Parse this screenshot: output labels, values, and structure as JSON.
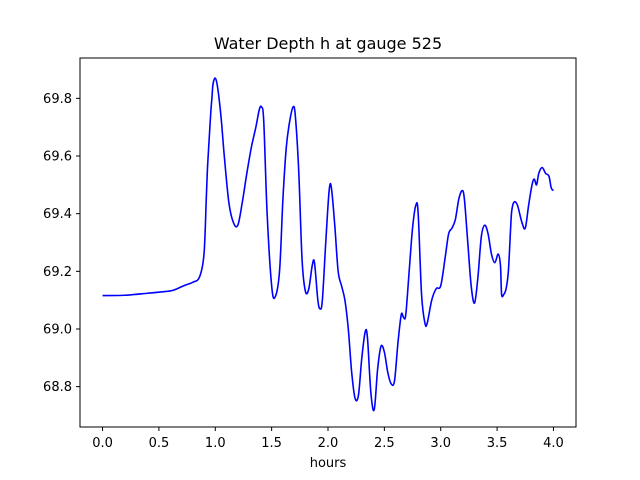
{
  "chart_data": {
    "type": "line",
    "title": "Water Depth h at gauge 525",
    "xlabel": "hours",
    "ylabel": "",
    "xlim": [
      -0.2,
      4.2
    ],
    "ylim": [
      68.66,
      69.94
    ],
    "xticks": [
      0.0,
      0.5,
      1.0,
      1.5,
      2.0,
      2.5,
      3.0,
      3.5,
      4.0
    ],
    "xtick_labels": [
      "0.0",
      "0.5",
      "1.0",
      "1.5",
      "2.0",
      "2.5",
      "3.0",
      "3.5",
      "4.0"
    ],
    "yticks": [
      68.8,
      69.0,
      69.2,
      69.4,
      69.6,
      69.8
    ],
    "ytick_labels": [
      "68.8",
      "69.0",
      "69.2",
      "69.4",
      "69.6",
      "69.8"
    ],
    "grid": false,
    "series": [
      {
        "color": "#0000ff",
        "x": [
          0.0,
          0.2,
          0.4,
          0.6,
          0.65,
          0.72,
          0.8,
          0.86,
          0.9,
          0.92,
          0.93,
          0.94,
          0.96,
          0.97,
          0.98,
          1.0,
          1.02,
          1.05,
          1.08,
          1.12,
          1.16,
          1.2,
          1.24,
          1.28,
          1.32,
          1.36,
          1.39,
          1.41,
          1.43,
          1.46,
          1.5,
          1.53,
          1.57,
          1.6,
          1.63,
          1.66,
          1.69,
          1.71,
          1.74,
          1.77,
          1.8,
          1.83,
          1.86,
          1.88,
          1.91,
          1.93,
          1.95,
          1.98,
          2.01,
          2.03,
          2.06,
          2.09,
          2.12,
          2.15,
          2.18,
          2.21,
          2.24,
          2.27,
          2.3,
          2.33,
          2.35,
          2.38,
          2.41,
          2.44,
          2.47,
          2.5,
          2.53,
          2.56,
          2.59,
          2.62,
          2.65,
          2.67,
          2.69,
          2.72,
          2.75,
          2.78,
          2.8,
          2.83,
          2.86,
          2.88,
          2.92,
          2.96,
          3.0,
          3.04,
          3.07,
          3.1,
          3.13,
          3.16,
          3.19,
          3.21,
          3.24,
          3.27,
          3.3,
          3.33,
          3.36,
          3.39,
          3.42,
          3.45,
          3.48,
          3.51,
          3.53,
          3.54,
          3.56,
          3.58,
          3.6,
          3.62,
          3.63,
          3.65,
          3.68,
          3.72,
          3.75,
          3.78,
          3.81,
          3.83,
          3.85,
          3.87,
          3.9,
          3.93,
          3.96,
          3.98,
          4.0
        ],
        "y": [
          69.116,
          69.117,
          69.124,
          69.132,
          69.138,
          69.15,
          69.162,
          69.18,
          69.26,
          69.45,
          69.55,
          69.62,
          69.75,
          69.8,
          69.85,
          69.87,
          69.84,
          69.74,
          69.6,
          69.44,
          69.37,
          69.36,
          69.44,
          69.54,
          69.63,
          69.7,
          69.76,
          69.77,
          69.72,
          69.4,
          69.15,
          69.11,
          69.2,
          69.45,
          69.63,
          69.72,
          69.77,
          69.74,
          69.55,
          69.24,
          69.13,
          69.14,
          69.22,
          69.23,
          69.1,
          69.07,
          69.1,
          69.3,
          69.48,
          69.49,
          69.36,
          69.2,
          69.15,
          69.1,
          69.0,
          68.85,
          68.76,
          68.77,
          68.9,
          68.99,
          68.97,
          68.78,
          68.72,
          68.86,
          68.94,
          68.92,
          68.85,
          68.81,
          68.82,
          68.95,
          69.05,
          69.04,
          69.05,
          69.2,
          69.35,
          69.43,
          69.4,
          69.12,
          69.02,
          69.02,
          69.1,
          69.14,
          69.15,
          69.25,
          69.33,
          69.35,
          69.38,
          69.45,
          69.48,
          69.45,
          69.3,
          69.15,
          69.09,
          69.18,
          69.32,
          69.36,
          69.33,
          69.26,
          69.23,
          69.26,
          69.22,
          69.12,
          69.12,
          69.14,
          69.2,
          69.35,
          69.41,
          69.44,
          69.43,
          69.37,
          69.35,
          69.43,
          69.5,
          69.52,
          69.5,
          69.54,
          69.56,
          69.54,
          69.53,
          69.49,
          69.48
        ]
      }
    ]
  }
}
